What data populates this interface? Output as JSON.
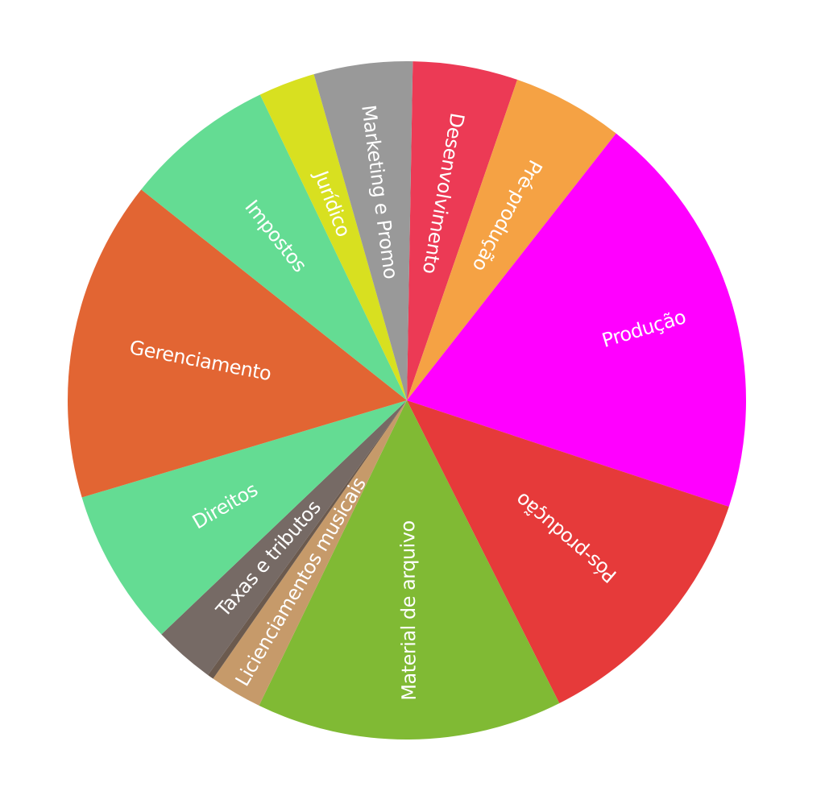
{
  "chart_data": {
    "type": "pie",
    "title": "",
    "start_angle_deg": 1,
    "direction": "clockwise",
    "slices": [
      {
        "label": "Desenvolvimento",
        "value": 5.0,
        "color": "#EC3A55"
      },
      {
        "label": "Pré-produção",
        "value": 5.3,
        "color": "#F5A244"
      },
      {
        "label": "Produção",
        "value": 19.5,
        "color": "#FF00FF"
      },
      {
        "label": "Pós-produção",
        "value": 12.5,
        "color": "#E63A3A"
      },
      {
        "label": "Material de arquivo",
        "value": 14.6,
        "color": "#80BA34"
      },
      {
        "label": "Licienciamentos musicais",
        "value": 2.5,
        "color": "#C69A6A"
      },
      {
        "label": "",
        "value": 0.3,
        "color": "#6B5A4E"
      },
      {
        "label": "Taxas e tributos",
        "value": 2.9,
        "color": "#766A65"
      },
      {
        "label": "Direitos",
        "value": 7.5,
        "color": "#64DC93"
      },
      {
        "label": "Gerenciamento",
        "value": 15.3,
        "color": "#E26533"
      },
      {
        "label": "Impostos",
        "value": 7.2,
        "color": "#64DC93"
      },
      {
        "label": "Jurídico",
        "value": 2.7,
        "color": "#D8E020"
      },
      {
        "label": "Marketing e Promo",
        "value": 4.7,
        "color": "#999999"
      }
    ]
  }
}
